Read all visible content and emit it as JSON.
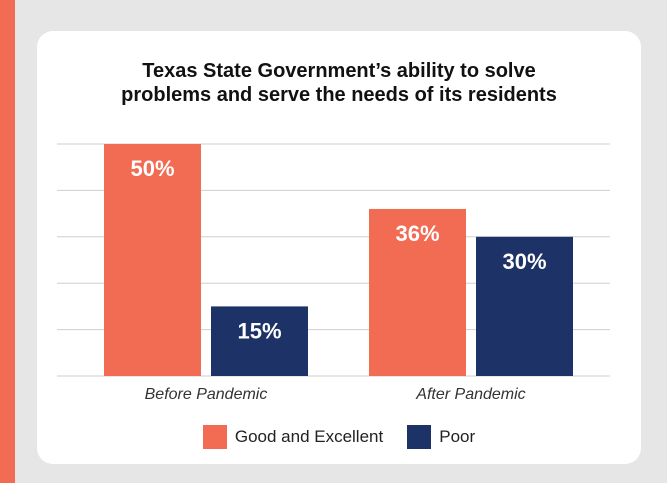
{
  "colors": {
    "good": "#f26b53",
    "poor": "#1d3266",
    "grid": "#cfcfcf",
    "background": "#e6e6e6",
    "border": "#f26b53"
  },
  "chart_data": {
    "type": "bar",
    "title_lines": [
      "Texas State Government’s ability to solve",
      "problems and serve the needs of its residents"
    ],
    "categories": [
      "Before Pandemic",
      "After Pandemic"
    ],
    "series": [
      {
        "name": "Good and Excellent",
        "values": [
          50,
          36
        ],
        "labels": [
          "50%",
          "36%"
        ],
        "color": "#f26b53"
      },
      {
        "name": "Poor",
        "values": [
          15,
          30
        ],
        "labels": [
          "15%",
          "30%"
        ],
        "color": "#1d3266"
      }
    ],
    "ylim": [
      0,
      50
    ],
    "grid": true,
    "legend": "bottom-center"
  }
}
